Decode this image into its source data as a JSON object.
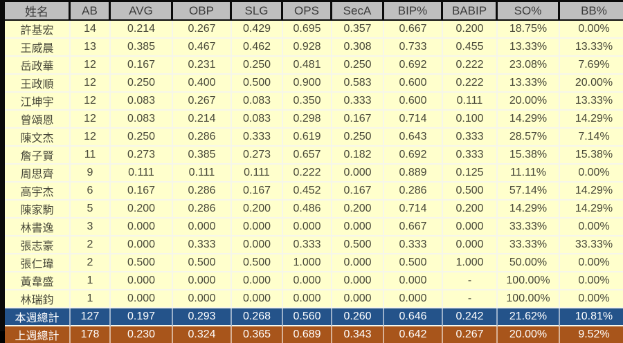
{
  "colors": {
    "frame": "#0A0A0A",
    "header_bg": "#BFBFBF",
    "header_text": "#3A3A3A",
    "body_bg": "#FFFFCC",
    "body_text": "#474738",
    "grid_line": "#F6F6EA",
    "this_week_bg": "#24538A",
    "last_week_bg": "#A8551B",
    "total_text": "#FFFFFF"
  },
  "chart_data": {
    "type": "table",
    "columns": [
      "姓名",
      "AB",
      "AVG",
      "OBP",
      "SLG",
      "OPS",
      "SecA",
      "BIP%",
      "BABIP",
      "SO%",
      "BB%"
    ],
    "rows": [
      [
        "許基宏",
        "14",
        "0.214",
        "0.267",
        "0.429",
        "0.695",
        "0.357",
        "0.667",
        "0.200",
        "18.75%",
        "0.00%"
      ],
      [
        "王威晨",
        "13",
        "0.385",
        "0.467",
        "0.462",
        "0.928",
        "0.308",
        "0.733",
        "0.455",
        "13.33%",
        "13.33%"
      ],
      [
        "岳政華",
        "12",
        "0.167",
        "0.231",
        "0.250",
        "0.481",
        "0.250",
        "0.692",
        "0.222",
        "23.08%",
        "7.69%"
      ],
      [
        "王政順",
        "12",
        "0.250",
        "0.400",
        "0.500",
        "0.900",
        "0.583",
        "0.600",
        "0.222",
        "13.33%",
        "20.00%"
      ],
      [
        "江坤宇",
        "12",
        "0.083",
        "0.267",
        "0.083",
        "0.350",
        "0.333",
        "0.600",
        "0.111",
        "20.00%",
        "13.33%"
      ],
      [
        "曾頌恩",
        "12",
        "0.083",
        "0.214",
        "0.083",
        "0.298",
        "0.167",
        "0.714",
        "0.100",
        "14.29%",
        "14.29%"
      ],
      [
        "陳文杰",
        "12",
        "0.250",
        "0.286",
        "0.333",
        "0.619",
        "0.250",
        "0.643",
        "0.333",
        "28.57%",
        "7.14%"
      ],
      [
        "詹子賢",
        "11",
        "0.273",
        "0.385",
        "0.273",
        "0.657",
        "0.182",
        "0.692",
        "0.333",
        "15.38%",
        "15.38%"
      ],
      [
        "周思齊",
        "9",
        "0.111",
        "0.111",
        "0.111",
        "0.222",
        "0.000",
        "0.889",
        "0.125",
        "11.11%",
        "0.00%"
      ],
      [
        "高宇杰",
        "6",
        "0.167",
        "0.286",
        "0.167",
        "0.452",
        "0.167",
        "0.286",
        "0.500",
        "57.14%",
        "14.29%"
      ],
      [
        "陳家駒",
        "5",
        "0.200",
        "0.286",
        "0.200",
        "0.486",
        "0.200",
        "0.714",
        "0.200",
        "14.29%",
        "14.29%"
      ],
      [
        "林書逸",
        "3",
        "0.000",
        "0.000",
        "0.000",
        "0.000",
        "0.000",
        "0.667",
        "0.000",
        "33.33%",
        "0.00%"
      ],
      [
        "張志豪",
        "2",
        "0.000",
        "0.333",
        "0.000",
        "0.333",
        "0.500",
        "0.333",
        "0.000",
        "33.33%",
        "33.33%"
      ],
      [
        "張仁瑋",
        "2",
        "0.500",
        "0.500",
        "0.500",
        "1.000",
        "0.000",
        "0.500",
        "1.000",
        "50.00%",
        "0.00%"
      ],
      [
        "黃韋盛",
        "1",
        "0.000",
        "0.000",
        "0.000",
        "0.000",
        "0.000",
        "0.000",
        "-",
        "100.00%",
        "0.00%"
      ],
      [
        "林瑞鈞",
        "1",
        "0.000",
        "0.000",
        "0.000",
        "0.000",
        "0.000",
        "0.000",
        "-",
        "100.00%",
        "0.00%"
      ]
    ],
    "total_rows": [
      {
        "label": "本週總計",
        "style": "this-week",
        "values": [
          "127",
          "0.197",
          "0.293",
          "0.268",
          "0.560",
          "0.260",
          "0.646",
          "0.242",
          "21.62%",
          "10.81%"
        ]
      },
      {
        "label": "上週總計",
        "style": "last-week",
        "values": [
          "178",
          "0.230",
          "0.324",
          "0.365",
          "0.689",
          "0.343",
          "0.642",
          "0.267",
          "20.00%",
          "9.52%"
        ]
      }
    ]
  }
}
